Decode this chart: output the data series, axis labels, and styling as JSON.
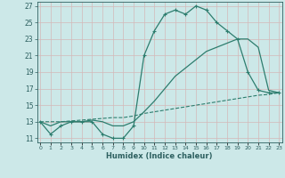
{
  "title": "",
  "xlabel": "Humidex (Indice chaleur)",
  "x": [
    0,
    1,
    2,
    3,
    4,
    5,
    6,
    7,
    8,
    9,
    10,
    11,
    12,
    13,
    14,
    15,
    16,
    17,
    18,
    19,
    20,
    21,
    22,
    23
  ],
  "line1": [
    13,
    11.5,
    12.5,
    13,
    13,
    13,
    11.5,
    11,
    11,
    12.5,
    21,
    24,
    26,
    26.5,
    26,
    27,
    26.5,
    25,
    24,
    23,
    19,
    16.8,
    16.5,
    16.5
  ],
  "line2": [
    13,
    12.5,
    13,
    13,
    13,
    13.2,
    13,
    12.5,
    12.5,
    13,
    14.2,
    15.5,
    17,
    18.5,
    19.5,
    20.5,
    21.5,
    22,
    22.5,
    23,
    23,
    22,
    16.8,
    16.5
  ],
  "line3": [
    13,
    13,
    13,
    13.1,
    13.2,
    13.3,
    13.4,
    13.5,
    13.5,
    13.7,
    14,
    14.2,
    14.4,
    14.6,
    14.8,
    15,
    15.2,
    15.4,
    15.6,
    15.8,
    16,
    16.2,
    16.3,
    16.5
  ],
  "line_color": "#2d7d6e",
  "bg_color": "#cce8e8",
  "grid_color": "#b8d4d4",
  "text_color": "#2d6060",
  "ylim": [
    10.5,
    27.5
  ],
  "yticks": [
    11,
    13,
    15,
    17,
    19,
    21,
    23,
    25,
    27
  ],
  "xlim": [
    -0.3,
    23.3
  ]
}
